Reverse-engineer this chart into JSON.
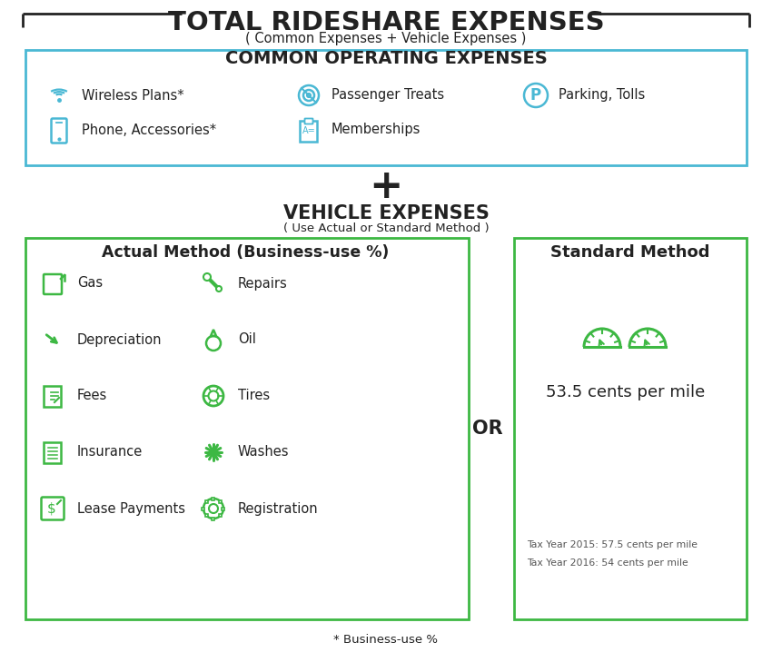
{
  "title": "TOTAL RIDESHARE EXPENSES",
  "subtitle": "( Common Expenses + Vehicle Expenses )",
  "bg_color": "#ffffff",
  "border_color": "#2b2b2b",
  "blue_color": "#4ab8d4",
  "green_color": "#3db843",
  "dark_text": "#222222",
  "gray_text": "#555555",
  "common_title": "COMMON OPERATING EXPENSES",
  "common_items_col1": [
    "Wireless Plans*",
    "Phone, Accessories*"
  ],
  "common_items_col2": [
    "Passenger Treats",
    "Memberships"
  ],
  "common_items_col3": [
    "Parking, Tolls"
  ],
  "plus_symbol": "+",
  "vehicle_title": "VEHICLE EXPENSES",
  "vehicle_subtitle": "( Use Actual or Standard Method )",
  "actual_title": "Actual Method (Business-use %)",
  "actual_col1": [
    "Gas",
    "Depreciation",
    "Fees",
    "Insurance",
    "Lease Payments"
  ],
  "actual_col2": [
    "Repairs",
    "Oil",
    "Tires",
    "Washes",
    "Registration"
  ],
  "or_text": "OR",
  "standard_title": "Standard Method",
  "standard_rate": "53.5 cents per mile",
  "standard_note1": "Tax Year 2015: 57.5 cents per mile",
  "standard_note2": "Tax Year 2016: 54 cents per mile",
  "footnote": "* Business-use %",
  "fig_w": 8.5,
  "fig_h": 7.4,
  "dpi": 100
}
